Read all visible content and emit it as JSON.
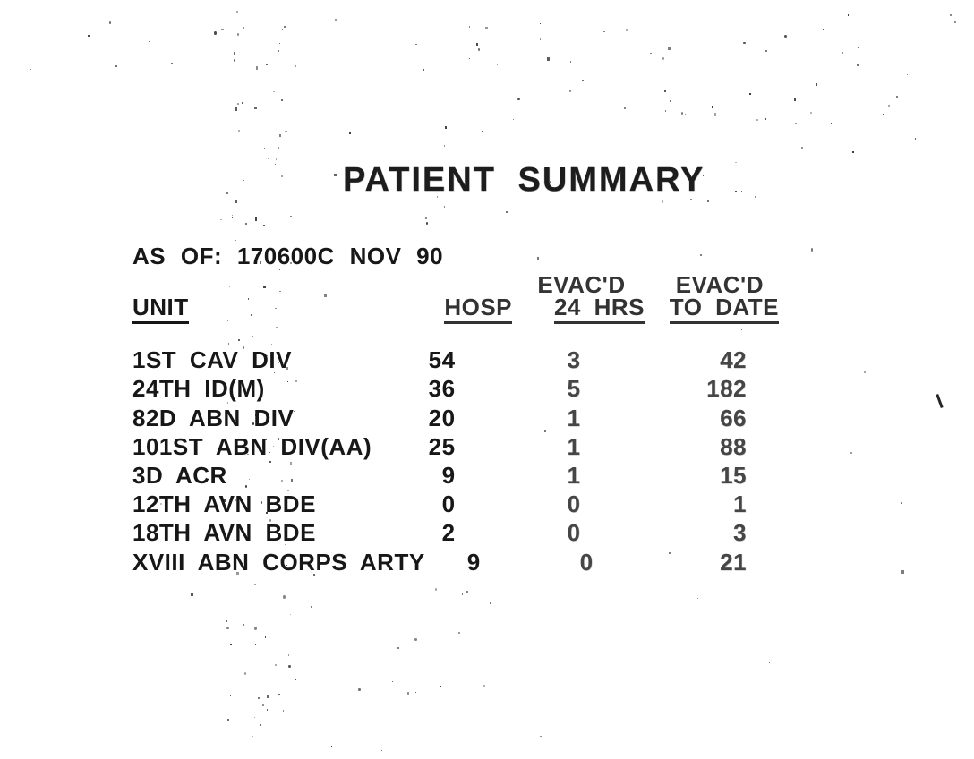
{
  "title": "PATIENT SUMMARY",
  "as_of": "AS OF: 170600C NOV 90",
  "table": {
    "headers": {
      "unit": "UNIT",
      "hosp": "HOSP",
      "evacd_over_24": "EVAC'D",
      "evacd_over_date": "EVAC'D",
      "hrs24": "24 HRS",
      "to_date": "TO DATE"
    },
    "rows": [
      {
        "unit": "1ST CAV DIV",
        "hosp": "54",
        "evac_24": "3",
        "evac_to_date": "42"
      },
      {
        "unit": "24TH ID(M)",
        "hosp": "36",
        "evac_24": "5",
        "evac_to_date": "182"
      },
      {
        "unit": "82D ABN DIV",
        "hosp": "20",
        "evac_24": "1",
        "evac_to_date": "66"
      },
      {
        "unit": "101ST ABN DIV(AA)",
        "hosp": "25",
        "evac_24": "1",
        "evac_to_date": "88"
      },
      {
        "unit": "3D ACR",
        "hosp": "9",
        "evac_24": "1",
        "evac_to_date": "15"
      },
      {
        "unit": "12TH AVN BDE",
        "hosp": "0",
        "evac_24": "0",
        "evac_to_date": "1"
      },
      {
        "unit": "18TH AVN BDE",
        "hosp": "2",
        "evac_24": "0",
        "evac_to_date": "3"
      },
      {
        "unit": "XVIII ABN CORPS ARTY",
        "hosp": "9",
        "evac_24": "0",
        "evac_to_date": "21"
      }
    ]
  },
  "colors": {
    "background": "#ffffff",
    "ink": "#1f1f1f",
    "faded_ink": "#4a4a4a"
  }
}
